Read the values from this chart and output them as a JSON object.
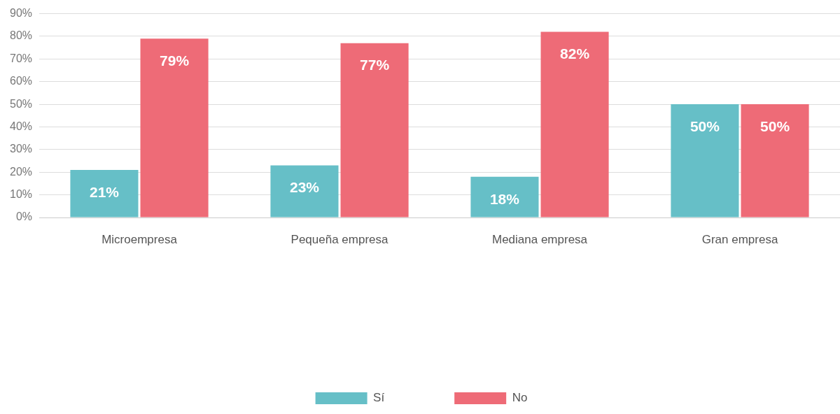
{
  "chart_data": {
    "type": "bar",
    "categories": [
      "Microempresa",
      "Pequeña empresa",
      "Mediana empresa",
      "Gran empresa"
    ],
    "series": [
      {
        "name": "Sí",
        "color": "#66bfc7",
        "values": [
          21,
          23,
          18,
          50
        ],
        "value_labels": [
          "21%",
          "23%",
          "18%",
          "50%"
        ]
      },
      {
        "name": "No",
        "color": "#ee6b77",
        "values": [
          79,
          77,
          82,
          50
        ],
        "value_labels": [
          "79%",
          "77%",
          "82%",
          "50%"
        ]
      }
    ],
    "ylim": [
      0,
      90
    ],
    "yticks": [
      {
        "value": 0,
        "label": "0%"
      },
      {
        "value": 10,
        "label": "10%"
      },
      {
        "value": 20,
        "label": "20%"
      },
      {
        "value": 30,
        "label": "30%"
      },
      {
        "value": 40,
        "label": "40%"
      },
      {
        "value": 50,
        "label": "50%"
      },
      {
        "value": 60,
        "label": "60%"
      },
      {
        "value": 70,
        "label": "70%"
      },
      {
        "value": 80,
        "label": "80%"
      },
      {
        "value": 90,
        "label": "90%"
      }
    ],
    "grid": "y",
    "legend": "bottom"
  }
}
